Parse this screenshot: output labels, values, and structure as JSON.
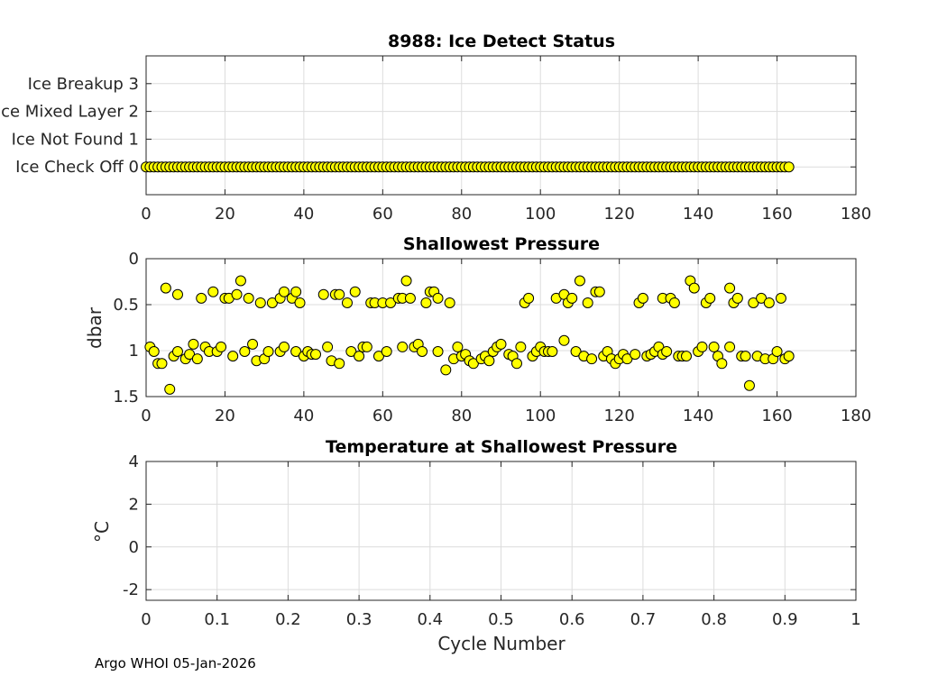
{
  "footer": "Argo WHOI 05-Jan-2026",
  "colors": {
    "marker": "#ffff00",
    "marker_edge": "#000000"
  },
  "chart_data": [
    {
      "type": "scatter",
      "title": "8988: Ice Detect Status",
      "xlabel": "",
      "ylabel": "",
      "xlim": [
        0,
        180
      ],
      "ylim": [
        -1,
        4
      ],
      "xticks": [
        "0",
        "20",
        "40",
        "60",
        "80",
        "100",
        "120",
        "140",
        "160",
        "180"
      ],
      "yticks": [
        {
          "v": 0,
          "label": "Ice Check Off 0"
        },
        {
          "v": 1,
          "label": "Ice Not Found 1"
        },
        {
          "v": 2,
          "label": "Ice Mixed Layer 2"
        },
        {
          "v": 3,
          "label": "Ice Breakup 3"
        }
      ],
      "grid": true,
      "cycle_first": 0,
      "cycle_last": 163,
      "value": 0
    },
    {
      "type": "scatter",
      "title": "Shallowest Pressure",
      "xlabel": "",
      "ylabel": "dbar",
      "xlim": [
        0,
        180
      ],
      "ylim": [
        0,
        1.5
      ],
      "y_reversed": true,
      "xticks": [
        "0",
        "20",
        "40",
        "60",
        "80",
        "100",
        "120",
        "140",
        "160",
        "180"
      ],
      "yticks": [
        "0",
        "0.5",
        "1",
        "1.5"
      ],
      "grid": true,
      "points": [
        [
          5,
          0.32
        ],
        [
          8,
          0.39
        ],
        [
          14,
          0.43
        ],
        [
          17,
          0.36
        ],
        [
          20,
          0.43
        ],
        [
          21,
          0.43
        ],
        [
          23,
          0.39
        ],
        [
          24,
          0.24
        ],
        [
          26,
          0.43
        ],
        [
          29,
          0.48
        ],
        [
          32,
          0.48
        ],
        [
          34,
          0.43
        ],
        [
          35,
          0.36
        ],
        [
          37,
          0.43
        ],
        [
          38,
          0.36
        ],
        [
          39,
          0.48
        ],
        [
          45,
          0.39
        ],
        [
          48,
          0.39
        ],
        [
          49,
          0.39
        ],
        [
          51,
          0.48
        ],
        [
          53,
          0.36
        ],
        [
          57,
          0.48
        ],
        [
          58,
          0.48
        ],
        [
          60,
          0.48
        ],
        [
          62,
          0.48
        ],
        [
          64,
          0.43
        ],
        [
          65,
          0.43
        ],
        [
          66,
          0.24
        ],
        [
          67,
          0.43
        ],
        [
          71,
          0.48
        ],
        [
          72,
          0.36
        ],
        [
          73,
          0.36
        ],
        [
          74,
          0.43
        ],
        [
          77,
          0.48
        ],
        [
          96,
          0.48
        ],
        [
          97,
          0.43
        ],
        [
          104,
          0.43
        ],
        [
          106,
          0.39
        ],
        [
          107,
          0.48
        ],
        [
          108,
          0.43
        ],
        [
          110,
          0.24
        ],
        [
          112,
          0.48
        ],
        [
          114,
          0.36
        ],
        [
          115,
          0.36
        ],
        [
          125,
          0.48
        ],
        [
          126,
          0.43
        ],
        [
          131,
          0.43
        ],
        [
          133,
          0.43
        ],
        [
          134,
          0.48
        ],
        [
          138,
          0.24
        ],
        [
          139,
          0.32
        ],
        [
          142,
          0.48
        ],
        [
          143,
          0.43
        ],
        [
          148,
          0.32
        ],
        [
          149,
          0.48
        ],
        [
          150,
          0.43
        ],
        [
          154,
          0.48
        ],
        [
          156,
          0.43
        ],
        [
          158,
          0.48
        ],
        [
          161,
          0.43
        ],
        [
          1,
          0.96
        ],
        [
          2,
          1.01
        ],
        [
          3,
          1.14
        ],
        [
          4,
          1.14
        ],
        [
          6,
          1.42
        ],
        [
          7,
          1.06
        ],
        [
          8,
          1.01
        ],
        [
          10,
          1.09
        ],
        [
          11,
          1.04
        ],
        [
          12,
          0.93
        ],
        [
          13,
          1.09
        ],
        [
          15,
          0.96
        ],
        [
          16,
          1.01
        ],
        [
          18,
          1.01
        ],
        [
          19,
          0.96
        ],
        [
          22,
          1.06
        ],
        [
          25,
          1.01
        ],
        [
          27,
          0.93
        ],
        [
          28,
          1.11
        ],
        [
          30,
          1.09
        ],
        [
          31,
          1.01
        ],
        [
          34,
          1.01
        ],
        [
          35,
          0.96
        ],
        [
          38,
          1.01
        ],
        [
          40,
          1.06
        ],
        [
          41,
          1.01
        ],
        [
          42,
          1.04
        ],
        [
          43,
          1.04
        ],
        [
          46,
          0.96
        ],
        [
          47,
          1.11
        ],
        [
          49,
          1.14
        ],
        [
          52,
          1.01
        ],
        [
          54,
          1.06
        ],
        [
          55,
          0.96
        ],
        [
          56,
          0.96
        ],
        [
          59,
          1.06
        ],
        [
          61,
          1.01
        ],
        [
          65,
          0.96
        ],
        [
          68,
          0.96
        ],
        [
          69,
          0.93
        ],
        [
          70,
          1.01
        ],
        [
          74,
          1.01
        ],
        [
          76,
          1.21
        ],
        [
          78,
          1.09
        ],
        [
          79,
          0.96
        ],
        [
          80,
          1.06
        ],
        [
          81,
          1.04
        ],
        [
          82,
          1.11
        ],
        [
          83,
          1.14
        ],
        [
          85,
          1.09
        ],
        [
          86,
          1.06
        ],
        [
          87,
          1.11
        ],
        [
          88,
          1.01
        ],
        [
          89,
          0.96
        ],
        [
          90,
          0.93
        ],
        [
          92,
          1.04
        ],
        [
          93,
          1.06
        ],
        [
          94,
          1.14
        ],
        [
          95,
          0.96
        ],
        [
          98,
          1.06
        ],
        [
          99,
          1.01
        ],
        [
          100,
          0.96
        ],
        [
          101,
          1.01
        ],
        [
          102,
          1.01
        ],
        [
          103,
          1.01
        ],
        [
          106,
          0.89
        ],
        [
          109,
          1.01
        ],
        [
          111,
          1.06
        ],
        [
          113,
          1.09
        ],
        [
          116,
          1.06
        ],
        [
          117,
          1.01
        ],
        [
          118,
          1.09
        ],
        [
          119,
          1.14
        ],
        [
          120,
          1.09
        ],
        [
          121,
          1.04
        ],
        [
          122,
          1.09
        ],
        [
          124,
          1.04
        ],
        [
          127,
          1.06
        ],
        [
          128,
          1.04
        ],
        [
          129,
          1.01
        ],
        [
          130,
          0.96
        ],
        [
          131,
          1.04
        ],
        [
          132,
          1.01
        ],
        [
          135,
          1.06
        ],
        [
          136,
          1.06
        ],
        [
          137,
          1.06
        ],
        [
          140,
          1.01
        ],
        [
          141,
          0.96
        ],
        [
          144,
          0.96
        ],
        [
          145,
          1.06
        ],
        [
          146,
          1.14
        ],
        [
          148,
          0.96
        ],
        [
          151,
          1.06
        ],
        [
          152,
          1.06
        ],
        [
          153,
          1.38
        ],
        [
          155,
          1.06
        ],
        [
          157,
          1.09
        ],
        [
          159,
          1.09
        ],
        [
          160,
          1.01
        ],
        [
          162,
          1.09
        ],
        [
          163,
          1.06
        ]
      ]
    },
    {
      "type": "scatter",
      "title": "Temperature at Shallowest Pressure",
      "xlabel": "Cycle Number",
      "ylabel": "°C",
      "xlim": [
        0,
        1
      ],
      "ylim": [
        -2.5,
        4
      ],
      "xticks": [
        "0",
        "0.1",
        "0.2",
        "0.3",
        "0.4",
        "0.5",
        "0.6",
        "0.7",
        "0.8",
        "0.9",
        "1"
      ],
      "yticks": [
        "4",
        "2",
        "0",
        "-2"
      ],
      "grid": true,
      "points": []
    }
  ]
}
